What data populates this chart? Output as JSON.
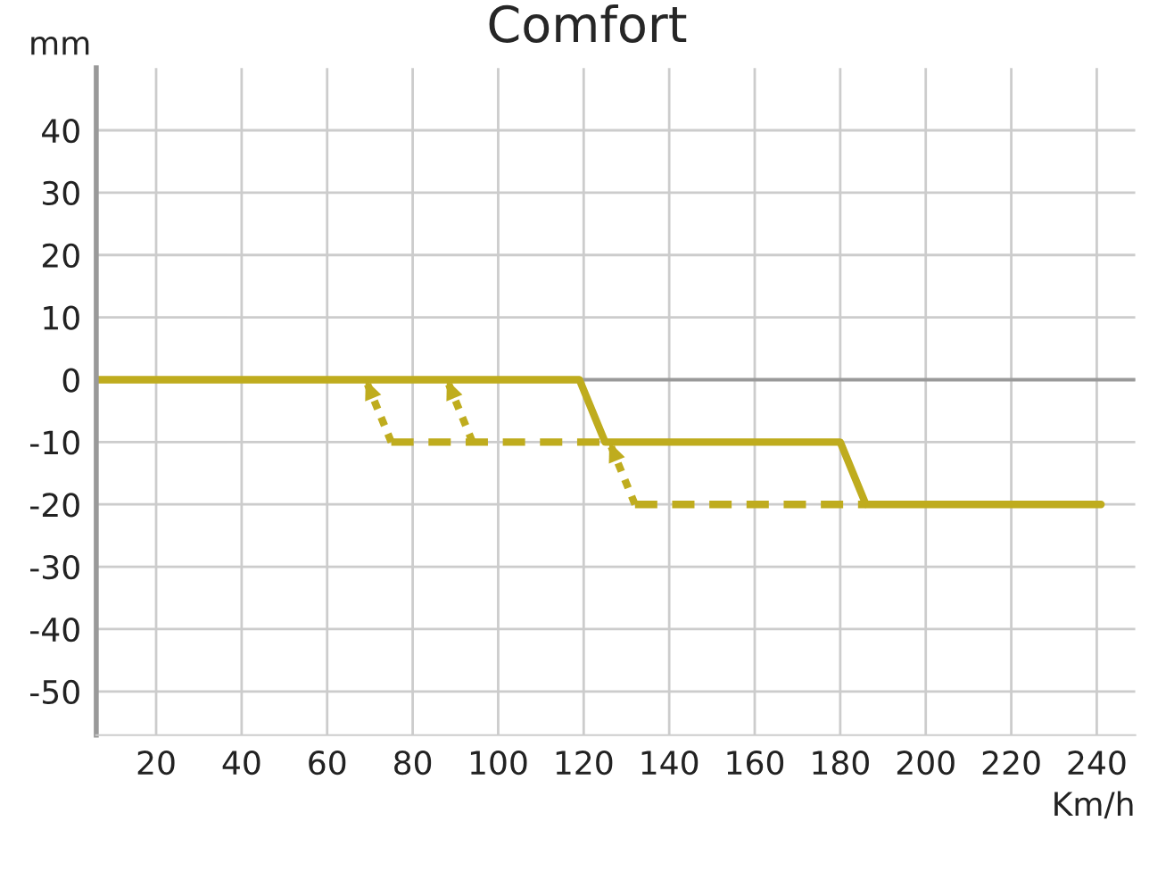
{
  "chart_data": {
    "type": "line",
    "title": "Comfort",
    "xlabel": "Km/h",
    "ylabel": "mm",
    "xlim": [
      6,
      249
    ],
    "xticks": [
      20,
      40,
      60,
      80,
      100,
      120,
      140,
      160,
      180,
      200,
      220,
      240
    ],
    "ylim": [
      -57,
      50
    ],
    "yticks": [
      -50,
      -40,
      -30,
      -20,
      -10,
      0,
      10,
      20,
      30,
      40
    ],
    "grid": true,
    "ref_lines": [
      {
        "axis": "y",
        "value": 0,
        "color": "#999999"
      }
    ],
    "series": [
      {
        "color": "#bfac1e",
        "line_style": "solid",
        "x": [
          6,
          119,
          125,
          180,
          186,
          241
        ],
        "values": [
          0,
          0,
          -10,
          -10,
          -20,
          -20
        ]
      },
      {
        "color": "#bfac1e",
        "line_style": "dashed",
        "x": [
          75,
          125
        ],
        "values": [
          -10,
          -10
        ]
      },
      {
        "color": "#bfac1e",
        "line_style": "dashed",
        "x": [
          132,
          186
        ],
        "values": [
          -20,
          -20
        ]
      },
      {
        "color": "#bfac1e",
        "line_style": "dotted",
        "x": [
          75,
          69
        ],
        "values": [
          -10,
          0
        ]
      },
      {
        "color": "#bfac1e",
        "line_style": "dotted",
        "x": [
          94,
          88
        ],
        "values": [
          -10,
          0
        ]
      },
      {
        "color": "#bfac1e",
        "line_style": "dotted",
        "x": [
          132,
          126
        ],
        "values": [
          -20,
          -10
        ]
      }
    ]
  }
}
